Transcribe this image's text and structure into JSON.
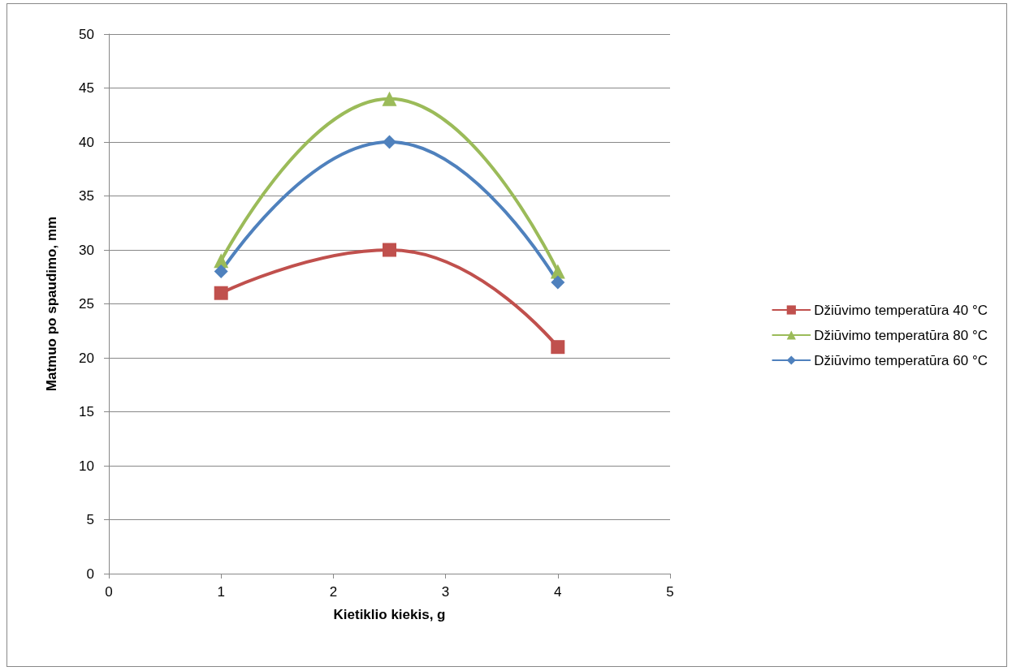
{
  "chart_data": {
    "type": "line",
    "xlabel": "Kietiklio kiekis, g",
    "ylabel": "Matmuo po spaudimo, mm",
    "x": [
      1,
      2.5,
      4
    ],
    "series": [
      {
        "name": "Džiūvimo temperatūra 40 °C",
        "color": "#c0504d",
        "marker": "square",
        "values": [
          26,
          30,
          21
        ]
      },
      {
        "name": "Džiūvimo temperatūra 80 °C",
        "color": "#9bbb59",
        "marker": "triangle",
        "values": [
          29,
          44,
          28
        ]
      },
      {
        "name": "Džiūvimo temperatūra 60 °C",
        "color": "#4f81bd",
        "marker": "diamond",
        "values": [
          28,
          40,
          27
        ]
      }
    ],
    "xlim": [
      0,
      5
    ],
    "xticks": [
      0,
      1,
      2,
      3,
      4,
      5
    ],
    "ylim": [
      0,
      50
    ],
    "yticks": [
      0,
      5,
      10,
      15,
      20,
      25,
      30,
      35,
      40,
      45,
      50
    ],
    "grid": "y",
    "legend": "right"
  }
}
